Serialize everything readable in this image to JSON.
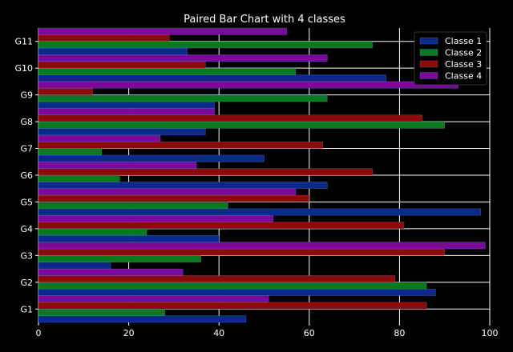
{
  "chart_data": {
    "type": "bar",
    "orientation": "horizontal",
    "title": "Paired Bar Chart with 4 classes",
    "xlabel": "",
    "ylabel": "",
    "xlim": [
      0,
      100
    ],
    "xticks": [
      0,
      20,
      40,
      60,
      80,
      100
    ],
    "grid": true,
    "legend_position": "top-right",
    "categories": [
      "G1",
      "G2",
      "G3",
      "G4",
      "G5",
      "G6",
      "G7",
      "G8",
      "G9",
      "G10",
      "G11"
    ],
    "series": [
      {
        "name": "Classe 1",
        "color": "#0a2a8a",
        "values": [
          46,
          88,
          16,
          40,
          98,
          64,
          50,
          37,
          39,
          77,
          33
        ]
      },
      {
        "name": "Classe 2",
        "color": "#0a7a1e",
        "values": [
          28,
          86,
          36,
          24,
          42,
          18,
          14,
          90,
          64,
          57,
          74
        ]
      },
      {
        "name": "Classe 3",
        "color": "#8b0a0a",
        "values": [
          86,
          79,
          90,
          81,
          60,
          74,
          63,
          85,
          12,
          37,
          29
        ]
      },
      {
        "name": "Classe 4",
        "color": "#7a0a9a",
        "values": [
          51,
          32,
          99,
          52,
          57,
          35,
          27,
          39,
          93,
          64,
          55
        ]
      }
    ]
  }
}
